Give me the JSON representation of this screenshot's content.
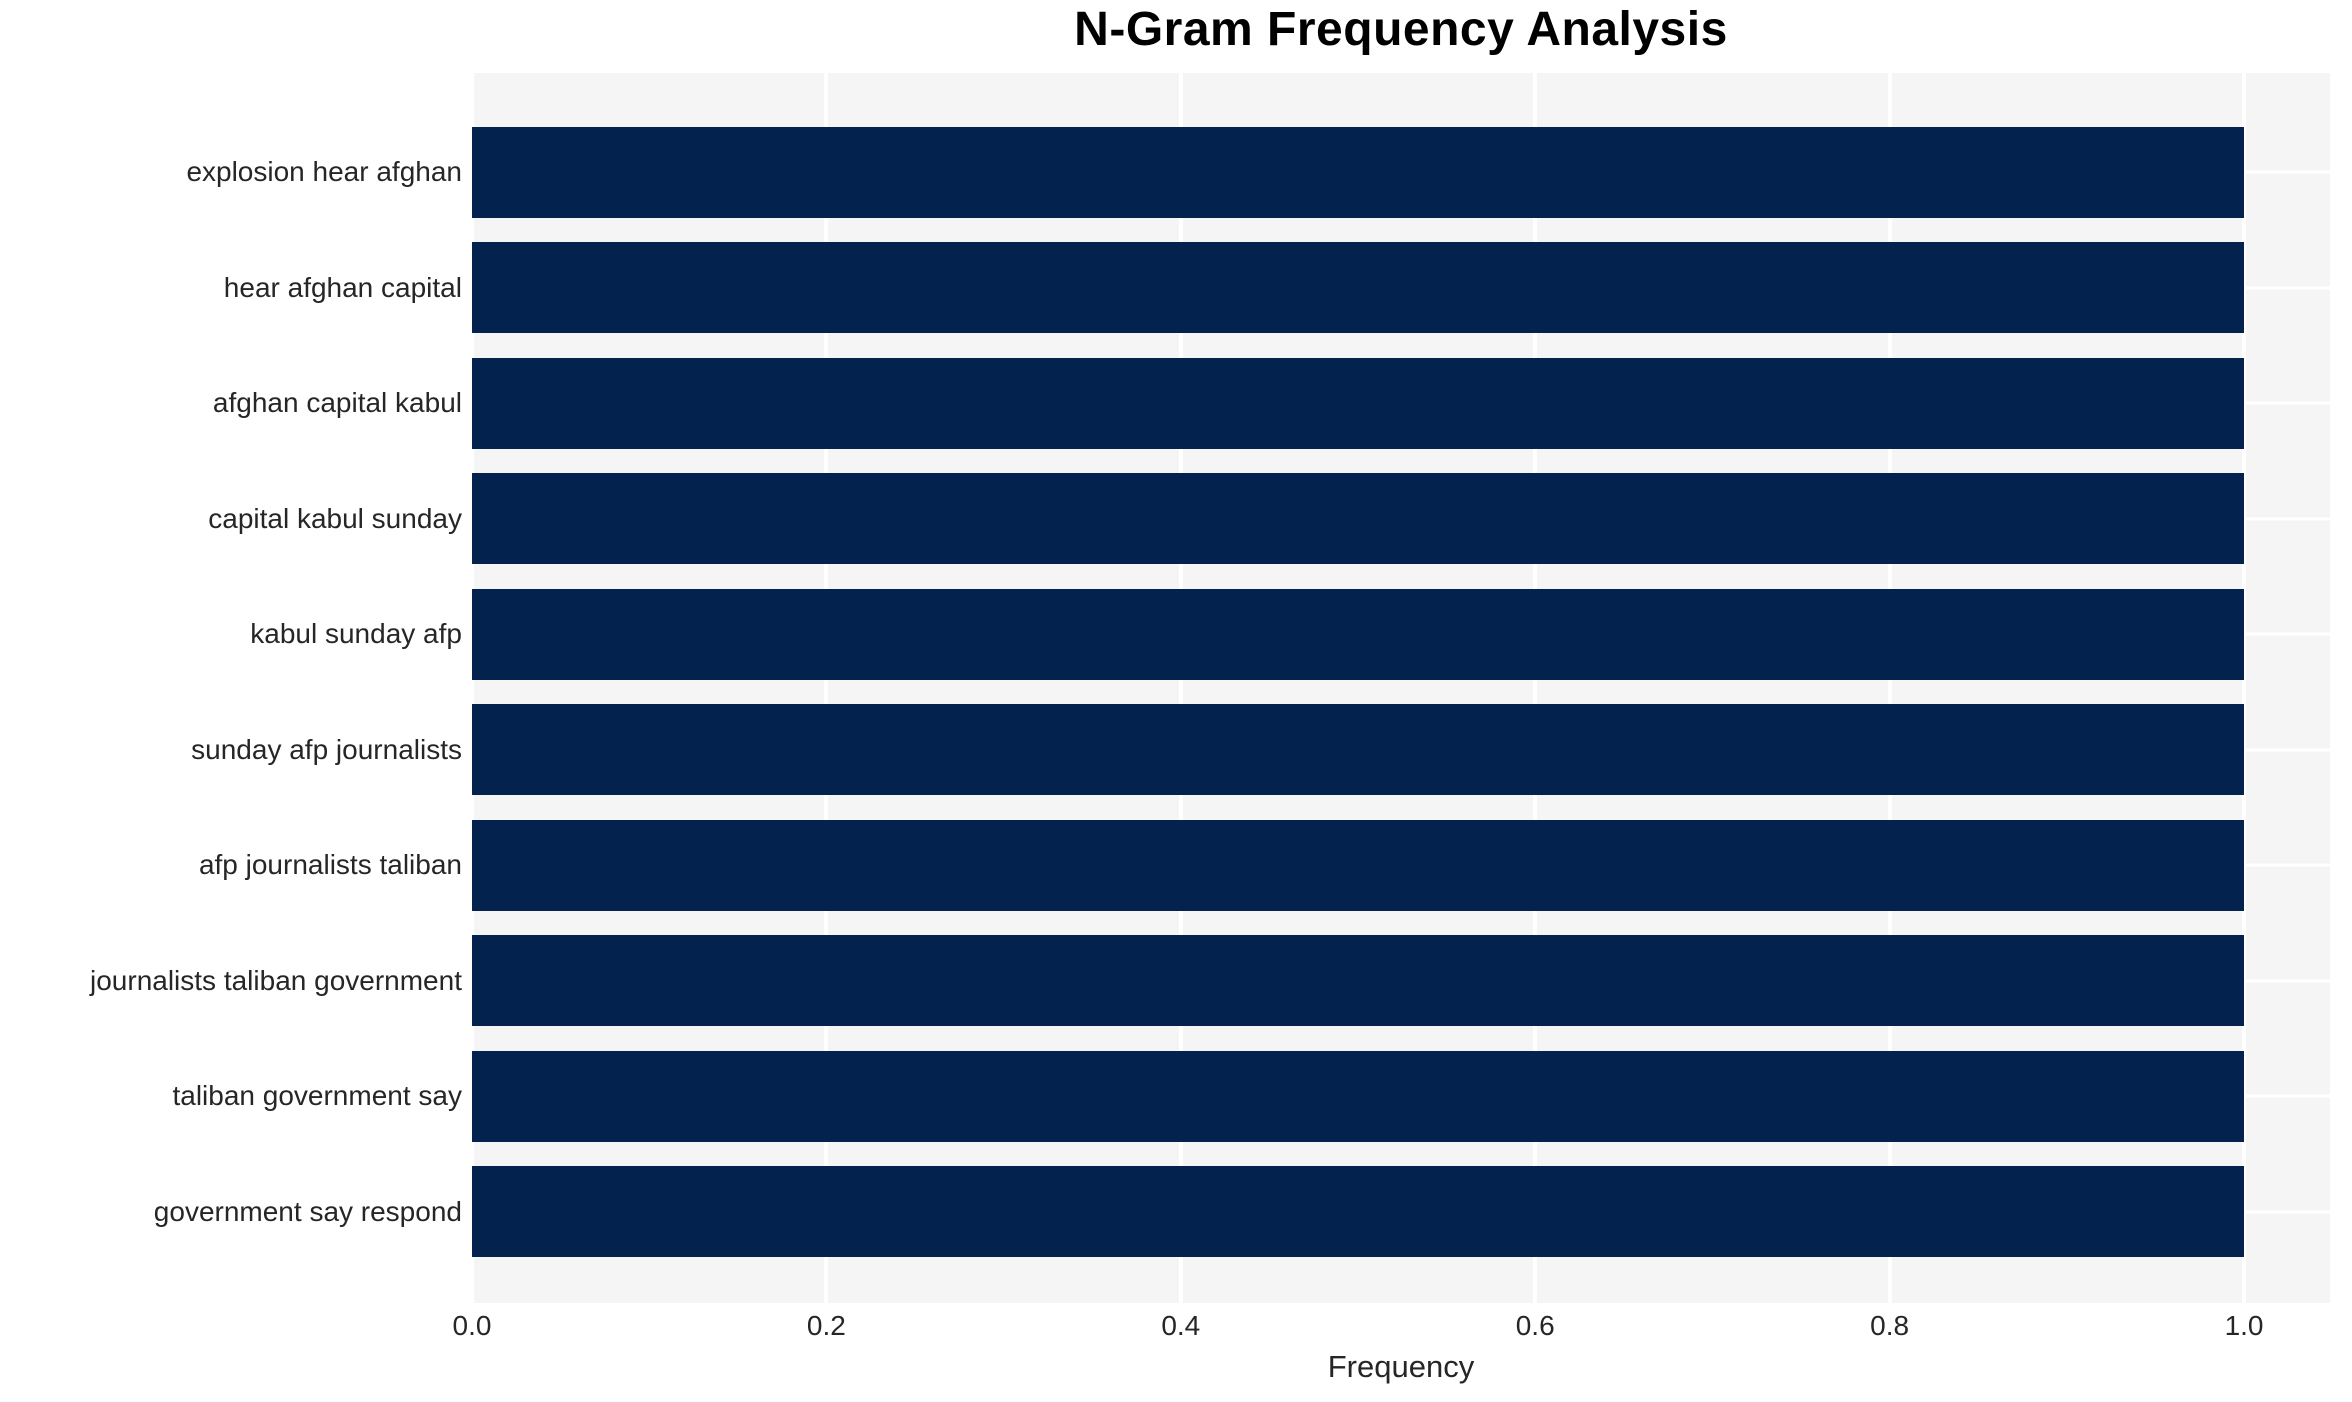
{
  "chart_data": {
    "type": "bar",
    "orientation": "horizontal",
    "title": "N-Gram Frequency Analysis",
    "xlabel": "Frequency",
    "ylabel": "",
    "categories": [
      "explosion hear afghan",
      "hear afghan capital",
      "afghan capital kabul",
      "capital kabul sunday",
      "kabul sunday afp",
      "sunday afp journalists",
      "afp journalists taliban",
      "journalists taliban government",
      "taliban government say",
      "government say respond"
    ],
    "values": [
      1.0,
      1.0,
      1.0,
      1.0,
      1.0,
      1.0,
      1.0,
      1.0,
      1.0,
      1.0
    ],
    "xlim": [
      0,
      1.0485
    ],
    "xticks": [
      {
        "value": 0.0,
        "label": "0.0"
      },
      {
        "value": 0.2,
        "label": "0.2"
      },
      {
        "value": 0.4,
        "label": "0.4"
      },
      {
        "value": 0.6,
        "label": "0.6"
      },
      {
        "value": 0.8,
        "label": "0.8"
      },
      {
        "value": 1.0,
        "label": "1.0"
      }
    ],
    "grid": true,
    "legend": false,
    "colors": {
      "bar": "#04224e",
      "plot_background": "#f5f5f6",
      "gridline": "#ffffff",
      "tick_text": "#262626",
      "title_text": "#000000",
      "page_background": "#ffffff"
    }
  }
}
